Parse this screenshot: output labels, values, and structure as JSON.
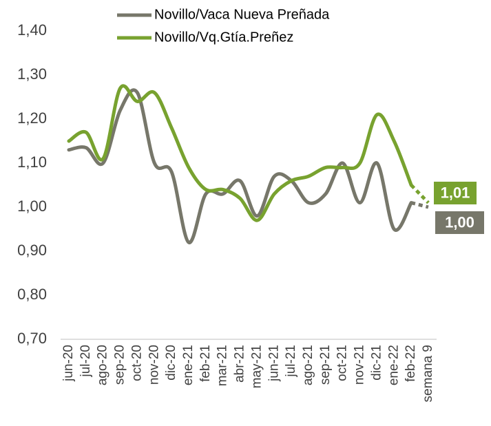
{
  "chart_data": {
    "type": "line",
    "categories": [
      "jun-20",
      "jul-20",
      "ago-20",
      "sep-20",
      "oct-20",
      "nov-20",
      "dic-20",
      "ene-21",
      "feb-21",
      "mar-21",
      "abr-21",
      "may-21",
      "jun-21",
      "jul-21",
      "ago-21",
      "sep-21",
      "oct-21",
      "nov-21",
      "dic-21",
      "ene-22",
      "feb-22",
      "semana 9"
    ],
    "series": [
      {
        "name": "Novillo/Vaca Nueva Preñada",
        "color": "#77776a",
        "values": [
          1.13,
          1.135,
          1.1,
          1.22,
          1.26,
          1.1,
          1.08,
          0.92,
          1.03,
          1.03,
          1.06,
          0.98,
          1.07,
          1.06,
          1.01,
          1.03,
          1.1,
          1.01,
          1.1,
          0.95,
          1.01,
          1.0
        ],
        "value_labels": [
          null,
          null,
          null,
          null,
          null,
          null,
          null,
          null,
          null,
          null,
          null,
          null,
          null,
          null,
          null,
          null,
          null,
          null,
          null,
          null,
          null,
          "1,00"
        ]
      },
      {
        "name": "Novillo/Vq.Gtía.Preñez",
        "color": "#78a22f",
        "values": [
          1.15,
          1.17,
          1.11,
          1.27,
          1.24,
          1.26,
          1.18,
          1.09,
          1.04,
          1.04,
          1.02,
          0.97,
          1.03,
          1.06,
          1.07,
          1.09,
          1.09,
          1.1,
          1.21,
          1.15,
          1.05,
          1.01
        ],
        "value_labels": [
          null,
          null,
          null,
          null,
          null,
          null,
          null,
          null,
          null,
          null,
          null,
          null,
          null,
          null,
          null,
          null,
          null,
          null,
          null,
          null,
          null,
          "1,01"
        ]
      }
    ],
    "ylim": [
      0.7,
      1.4
    ],
    "yticks": [
      {
        "value": 0.7,
        "label": "0,70"
      },
      {
        "value": 0.8,
        "label": "0,80"
      },
      {
        "value": 0.9,
        "label": "0,90"
      },
      {
        "value": 1.0,
        "label": "1,00"
      },
      {
        "value": 1.1,
        "label": "1,10"
      },
      {
        "value": 1.2,
        "label": "1,20"
      },
      {
        "value": 1.3,
        "label": "1,30"
      },
      {
        "value": 1.4,
        "label": "1,40"
      }
    ],
    "grid": false
  }
}
